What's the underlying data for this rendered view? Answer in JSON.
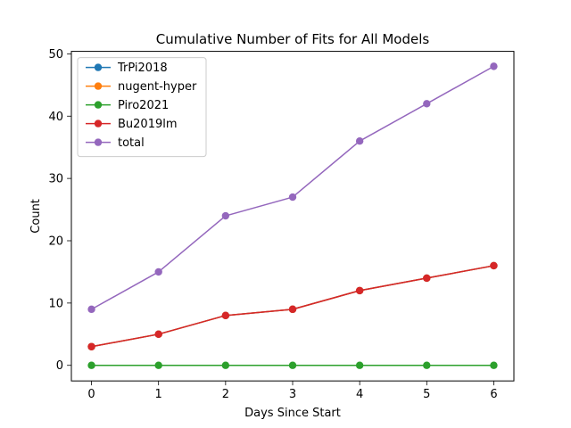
{
  "chart_data": {
    "type": "line",
    "title": "Cumulative Number of Fits for All Models",
    "xlabel": "Days Since Start",
    "ylabel": "Count",
    "x": [
      0,
      1,
      2,
      3,
      4,
      5,
      6
    ],
    "xlim": [
      -0.3,
      6.3
    ],
    "ylim": [
      -2.5,
      50.4
    ],
    "xticks": [
      0,
      1,
      2,
      3,
      4,
      5,
      6
    ],
    "yticks": [
      0,
      10,
      20,
      30,
      40,
      50
    ],
    "grid": false,
    "legend_position": "top-left",
    "series": [
      {
        "name": "TrPi2018",
        "color": "#1f77b4",
        "values": [
          3,
          5,
          8,
          9,
          12,
          14,
          16
        ]
      },
      {
        "name": "nugent-hyper",
        "color": "#ff7f0e",
        "values": [
          3,
          5,
          8,
          9,
          12,
          14,
          16
        ]
      },
      {
        "name": "Piro2021",
        "color": "#2ca02c",
        "values": [
          0,
          0,
          0,
          0,
          0,
          0,
          0
        ]
      },
      {
        "name": "Bu2019lm",
        "color": "#d62728",
        "values": [
          3,
          5,
          8,
          9,
          12,
          14,
          16
        ]
      },
      {
        "name": "total",
        "color": "#9467bd",
        "values": [
          9,
          15,
          24,
          27,
          36,
          42,
          48
        ]
      }
    ]
  }
}
